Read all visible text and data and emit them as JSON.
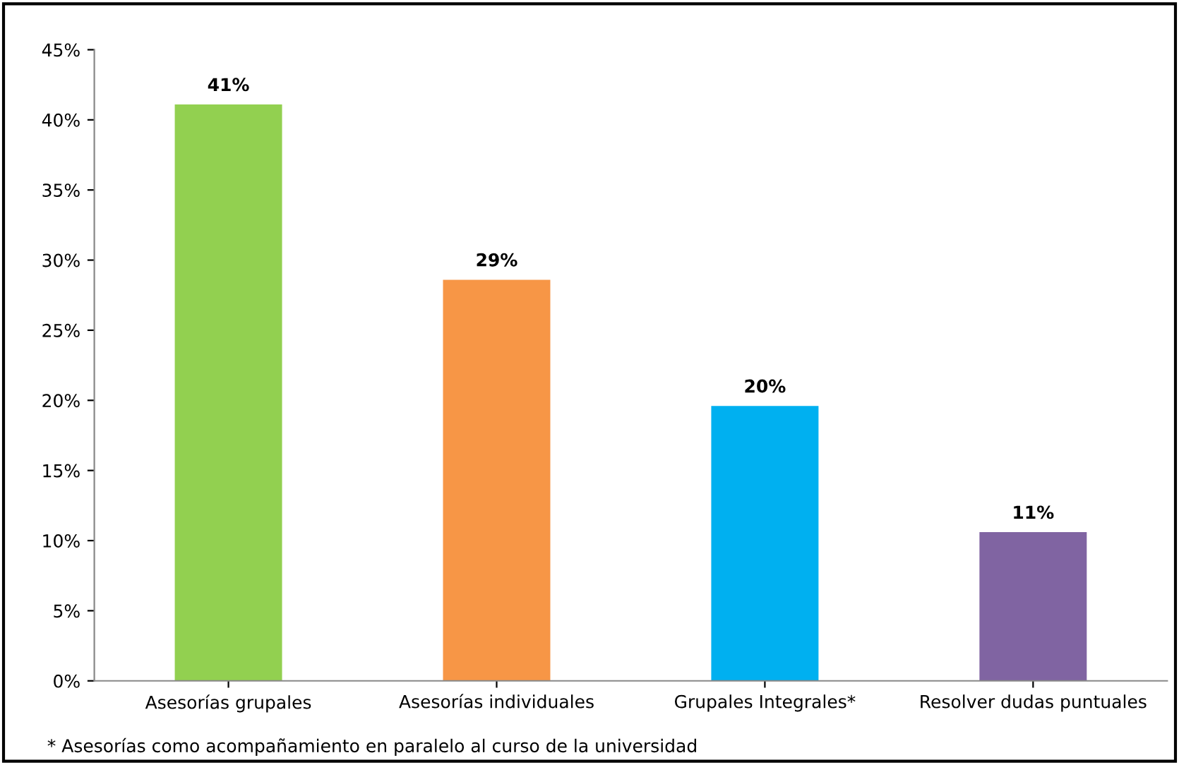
{
  "chart_data": {
    "type": "bar",
    "categories": [
      "Asesorías grupales",
      "Asesorías individuales",
      "Grupales Integrales*",
      "Resolver dudas puntuales"
    ],
    "values": [
      41.1,
      28.6,
      19.6,
      10.6
    ],
    "colors": [
      "#92d050",
      "#f79646",
      "#00b0f0",
      "#8064a2"
    ],
    "value_labels": [
      "41%",
      "29%",
      "20%",
      "11%"
    ],
    "ylim": [
      0,
      45
    ],
    "yticks": [
      {
        "value": 0,
        "label": "0%"
      },
      {
        "value": 5,
        "label": "5%"
      },
      {
        "value": 10,
        "label": "10%"
      },
      {
        "value": 15,
        "label": "15%"
      },
      {
        "value": 20,
        "label": "20%"
      },
      {
        "value": 25,
        "label": "25%"
      },
      {
        "value": 30,
        "label": "30%"
      },
      {
        "value": 35,
        "label": "35%"
      },
      {
        "value": 40,
        "label": "40%"
      },
      {
        "value": 45,
        "label": "45%"
      }
    ],
    "annotations": [
      "* Asesorías como acompañamiento en paralelo al curso de la universidad"
    ]
  }
}
